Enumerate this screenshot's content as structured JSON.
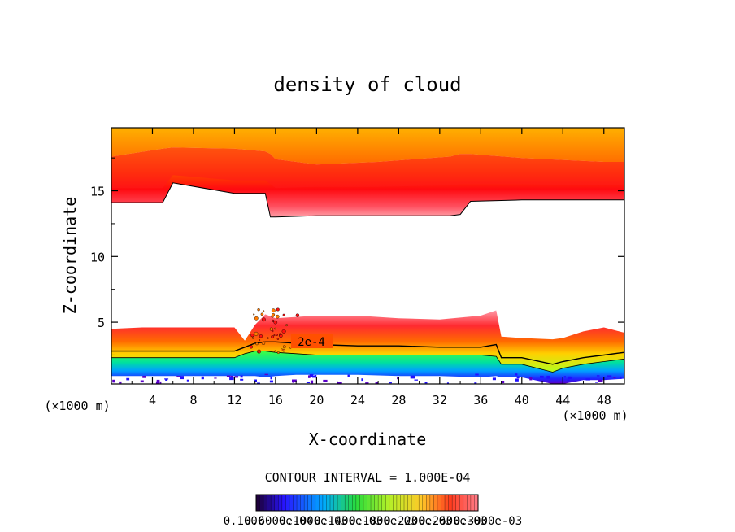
{
  "chart_data": {
    "type": "contour",
    "title": "density of cloud",
    "xlabel": "X-coordinate",
    "ylabel": "Z-coordinate",
    "x_units": "(×1000 m)",
    "xlim": [
      0,
      50
    ],
    "ylim": [
      0.3,
      19.8
    ],
    "x_ticks": [
      4,
      8,
      12,
      16,
      20,
      24,
      28,
      32,
      36,
      40,
      44,
      48
    ],
    "y_ticks": [
      5,
      10,
      15
    ],
    "contour_interval_label": "CONTOUR INTERVAL = 1.000E-04",
    "contour_label": "2e-4",
    "upper_layer": {
      "x": [
        0,
        5,
        6,
        12,
        15,
        15.5,
        16,
        20,
        26,
        33,
        34,
        35,
        40,
        48,
        50
      ],
      "bottom": [
        14.1,
        14.1,
        15.6,
        14.8,
        14.8,
        13.0,
        13.0,
        13.1,
        13.1,
        13.1,
        13.2,
        14.2,
        14.3,
        14.3,
        14.3
      ],
      "core_low": [
        15.2,
        15.2,
        16.2,
        15.8,
        15.8,
        15.5,
        15.2,
        15.3,
        15.3,
        15.4,
        15.5,
        15.5,
        15.5,
        15.4,
        15.4
      ],
      "core_high": [
        17.6,
        18.2,
        18.3,
        18.2,
        18.0,
        17.8,
        17.4,
        17.0,
        17.2,
        17.6,
        17.8,
        17.8,
        17.5,
        17.2,
        17.2
      ]
    },
    "lower_layer": {
      "x": [
        0,
        3,
        8,
        12,
        13,
        14,
        15,
        16,
        18,
        20,
        24,
        28,
        32,
        36,
        37.5,
        38,
        40,
        43,
        44,
        46,
        48,
        50
      ],
      "top": [
        4.5,
        4.6,
        4.6,
        4.6,
        3.6,
        4.8,
        5.6,
        5.3,
        5.4,
        5.5,
        5.5,
        5.3,
        5.2,
        5.5,
        5.9,
        3.9,
        3.8,
        3.7,
        3.8,
        4.3,
        4.6,
        4.2
      ],
      "c2e4": [
        2.8,
        2.8,
        2.8,
        2.8,
        3.1,
        3.4,
        3.5,
        3.5,
        3.4,
        3.3,
        3.2,
        3.2,
        3.1,
        3.1,
        3.3,
        2.3,
        2.3,
        1.8,
        2.0,
        2.3,
        2.5,
        2.7
      ],
      "green": [
        2.3,
        2.3,
        2.3,
        2.3,
        2.6,
        2.8,
        2.8,
        2.7,
        2.6,
        2.5,
        2.5,
        2.5,
        2.5,
        2.5,
        2.4,
        1.8,
        1.8,
        1.2,
        1.5,
        1.8,
        2.0,
        2.2
      ],
      "base": [
        0.9,
        0.9,
        0.9,
        0.9,
        0.9,
        0.9,
        0.8,
        0.9,
        1.0,
        1.0,
        1.0,
        0.9,
        0.9,
        0.8,
        0.9,
        0.8,
        0.8,
        0.3,
        0.3,
        0.6,
        0.6,
        0.7
      ]
    },
    "colorbar": {
      "labels": [
        "0.1000",
        "0.6000e-04",
        "0.1000e-03",
        "0.1400e-03",
        "0.1800e-03",
        "0.2200e-03",
        "0.2600e-03",
        "0.3000e-03"
      ],
      "n_bins": 60
    }
  }
}
